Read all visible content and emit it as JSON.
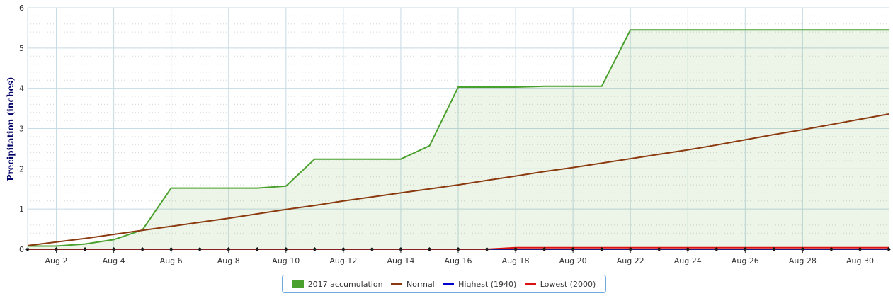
{
  "chart_data": {
    "type": "area",
    "ylabel": "Precipitation (inches)",
    "xlabel": "",
    "ylim": [
      0,
      6
    ],
    "yticks": [
      "0",
      "1",
      "2",
      "3",
      "4",
      "5",
      "6"
    ],
    "xlim": [
      1,
      31
    ],
    "xticks": [
      {
        "day": 2,
        "label": "Aug 2"
      },
      {
        "day": 4,
        "label": "Aug 4"
      },
      {
        "day": 6,
        "label": "Aug 6"
      },
      {
        "day": 8,
        "label": "Aug 8"
      },
      {
        "day": 10,
        "label": "Aug 10"
      },
      {
        "day": 12,
        "label": "Aug 12"
      },
      {
        "day": 14,
        "label": "Aug 14"
      },
      {
        "day": 16,
        "label": "Aug 16"
      },
      {
        "day": 18,
        "label": "Aug 18"
      },
      {
        "day": 20,
        "label": "Aug 20"
      },
      {
        "day": 22,
        "label": "Aug 22"
      },
      {
        "day": 24,
        "label": "Aug 24"
      },
      {
        "day": 26,
        "label": "Aug 26"
      },
      {
        "day": 28,
        "label": "Aug 28"
      },
      {
        "day": 30,
        "label": "Aug 30"
      }
    ],
    "grid": true,
    "legend_position": "bottom",
    "series": [
      {
        "name": "2017 accumulation",
        "kind": "area",
        "color": "#4aa02c",
        "x": [
          1,
          2,
          3,
          4,
          5,
          6,
          7,
          8,
          9,
          10,
          11,
          12,
          13,
          14,
          15,
          16,
          17,
          18,
          19,
          20,
          21,
          22,
          23,
          24,
          25,
          26,
          27,
          28,
          29,
          30,
          31
        ],
        "values": [
          0.08,
          0.08,
          0.13,
          0.24,
          0.48,
          1.52,
          1.52,
          1.52,
          1.52,
          1.57,
          2.24,
          2.24,
          2.24,
          2.24,
          2.57,
          4.03,
          4.03,
          4.03,
          4.05,
          4.05,
          4.05,
          5.45,
          5.45,
          5.45,
          5.45,
          5.45,
          5.45,
          5.45,
          5.45,
          5.45,
          5.45
        ]
      },
      {
        "name": "Normal",
        "kind": "line",
        "color": "#8b3a0f",
        "x": [
          1,
          2,
          3,
          4,
          5,
          6,
          7,
          8,
          9,
          10,
          11,
          12,
          13,
          14,
          15,
          16,
          17,
          18,
          19,
          20,
          21,
          22,
          23,
          24,
          25,
          26,
          27,
          28,
          29,
          30,
          31
        ],
        "values": [
          0.09,
          0.18,
          0.27,
          0.37,
          0.47,
          0.57,
          0.67,
          0.77,
          0.88,
          0.99,
          1.09,
          1.2,
          1.3,
          1.4,
          1.5,
          1.6,
          1.71,
          1.82,
          1.93,
          2.03,
          2.14,
          2.25,
          2.36,
          2.47,
          2.59,
          2.72,
          2.85,
          2.97,
          3.1,
          3.23,
          3.36
        ]
      },
      {
        "name": "Highest (1940)",
        "kind": "line",
        "color": "#0000cc",
        "x": [
          1,
          2,
          3,
          4,
          5,
          6,
          7,
          8,
          9,
          10,
          11,
          12,
          13,
          14,
          15,
          16,
          17,
          18,
          19,
          20,
          21,
          22,
          23,
          24,
          25,
          26,
          27,
          28,
          29,
          30,
          31
        ],
        "values": [
          0,
          0,
          0,
          0,
          0,
          0,
          0,
          0,
          0,
          0,
          0,
          0,
          0,
          0,
          0,
          0,
          0,
          0,
          0,
          0,
          0,
          0,
          0,
          0,
          0,
          0,
          0,
          0,
          0,
          0,
          0
        ]
      },
      {
        "name": "Lowest (2000)",
        "kind": "line",
        "color": "#dd1111",
        "x": [
          1,
          2,
          3,
          4,
          5,
          6,
          7,
          8,
          9,
          10,
          11,
          12,
          13,
          14,
          15,
          16,
          17,
          18,
          19,
          20,
          21,
          22,
          23,
          24,
          25,
          26,
          27,
          28,
          29,
          30,
          31
        ],
        "values": [
          0,
          0,
          0,
          0,
          0,
          0,
          0,
          0,
          0,
          0,
          0,
          0,
          0,
          0,
          0,
          0,
          0,
          0.04,
          0.04,
          0.04,
          0.04,
          0.04,
          0.04,
          0.04,
          0.04,
          0.04,
          0.04,
          0.04,
          0.04,
          0.04,
          0.04
        ]
      }
    ]
  }
}
